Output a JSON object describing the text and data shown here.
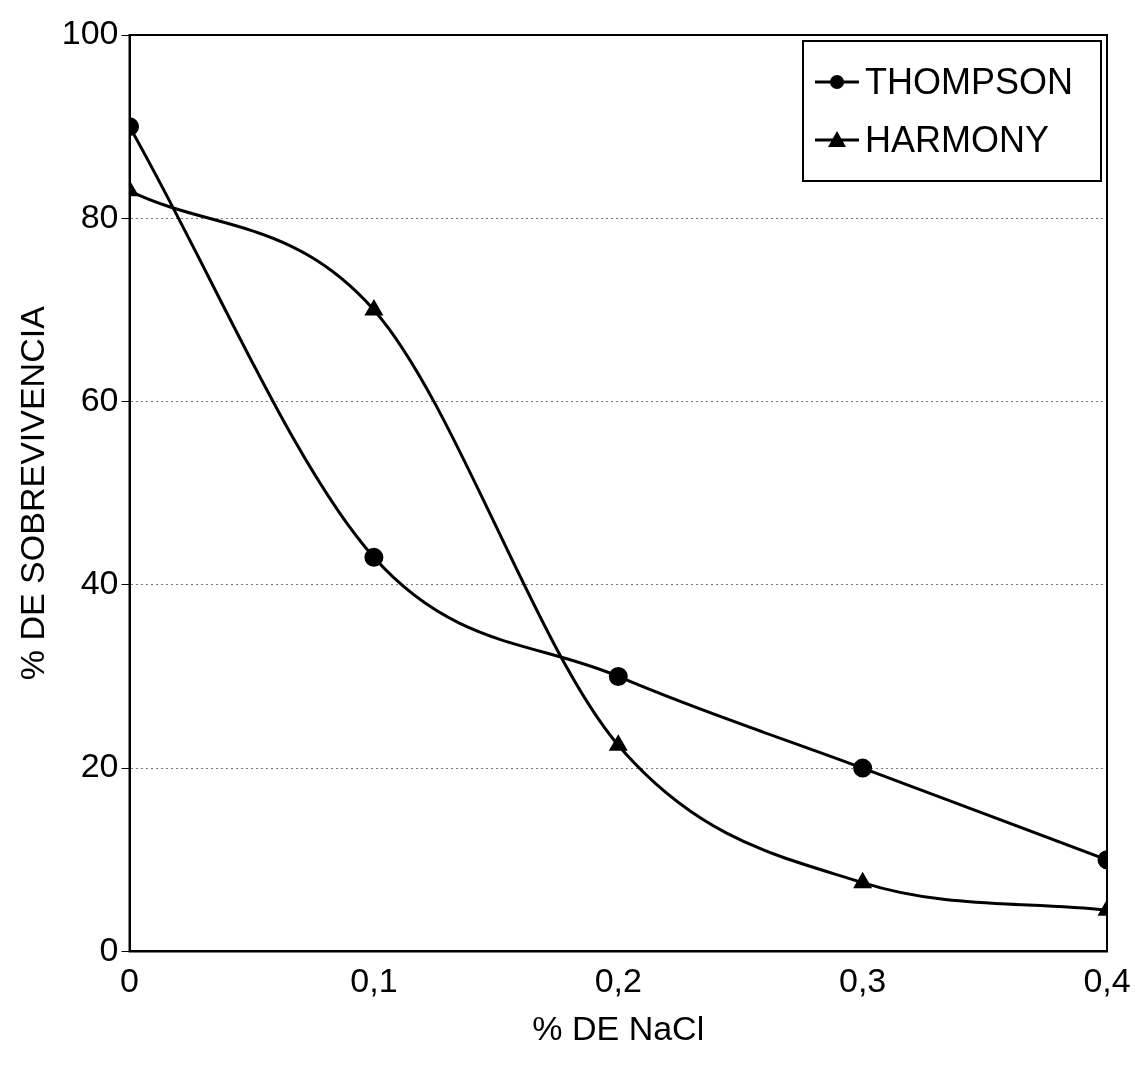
{
  "chart_data": {
    "type": "line",
    "xlabel": "% DE NaCl",
    "ylabel": "% DE SOBREVIVENCIA",
    "x": [
      0,
      0.1,
      0.2,
      0.3,
      0.4
    ],
    "series": [
      {
        "name": "THOMPSON",
        "color": "#000000",
        "marker": "circle",
        "values": [
          90,
          43,
          30,
          20,
          10
        ]
      },
      {
        "name": "HARMONY",
        "color": "#000000",
        "marker": "triangle",
        "values": [
          83,
          70,
          22.5,
          7.5,
          4.5
        ]
      }
    ],
    "xlim": [
      0,
      0.4
    ],
    "xticks": [
      0,
      {
        "value": 0.1,
        "label": "0,1"
      },
      {
        "value": 0.2,
        "label": "0,2"
      },
      {
        "value": 0.3,
        "label": "0,3"
      },
      {
        "value": 0.4,
        "label": "0,4"
      }
    ],
    "ylim": [
      0,
      100
    ],
    "yticks": [
      0,
      20,
      40,
      60,
      80,
      100
    ],
    "grid": "y",
    "legend": "top right",
    "line_style": "solid"
  }
}
